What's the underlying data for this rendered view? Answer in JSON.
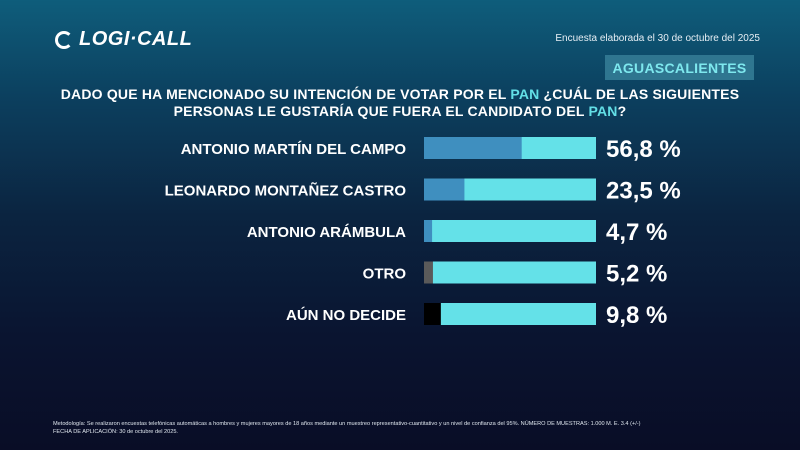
{
  "header": {
    "logo_text": "LOGI·CALL",
    "date_text": "Encuesta elaborada el 30 de octubre del 2025",
    "region": "AGUASCALIENTES"
  },
  "question": {
    "part1": "DADO QUE HA MENCIONADO SU INTENCIÓN DE VOTAR POR EL ",
    "hl1": "PAN",
    "part2": " ¿CUÁL DE LAS SIGUIENTES PERSONAS LE GUSTARÍA QUE FUERA EL CANDIDATO DEL ",
    "hl2": "PAN",
    "part3": "?"
  },
  "chart_data": {
    "type": "bar",
    "orientation": "horizontal",
    "xlim": [
      0,
      100
    ],
    "categories": [
      "ANTONIO MARTÍN DEL CAMPO",
      "LEONARDO MONTAÑEZ CASTRO",
      "ANTONIO ARÁMBULA",
      "OTRO",
      "AÚN NO DECIDE"
    ],
    "values": [
      56.8,
      23.5,
      4.7,
      5.2,
      9.8
    ],
    "labels": [
      "56,8 %",
      "23,5 %",
      "4,7 %",
      "5,2 %",
      "9,8 %"
    ],
    "bar_colors": [
      "#3f8fbf",
      "#3f8fbf",
      "#3f8fbf",
      "#5a5a5a",
      "#000000"
    ],
    "track_color": "#64e1e8",
    "grid": false
  },
  "footer": {
    "line1": "Metodología: Se realizaron encuestas telefónicas automáticas a hombres y mujeres mayores de 18 años mediante un muestreo representativo-cuantitativo y un nivel de confianza del 95%. NÚMERO DE MUESTRAS: 1.000 M. E. 3.4 (+/-)",
    "line2": "FECHA DE APLICACIÓN: 30 de octubre del 2025."
  }
}
